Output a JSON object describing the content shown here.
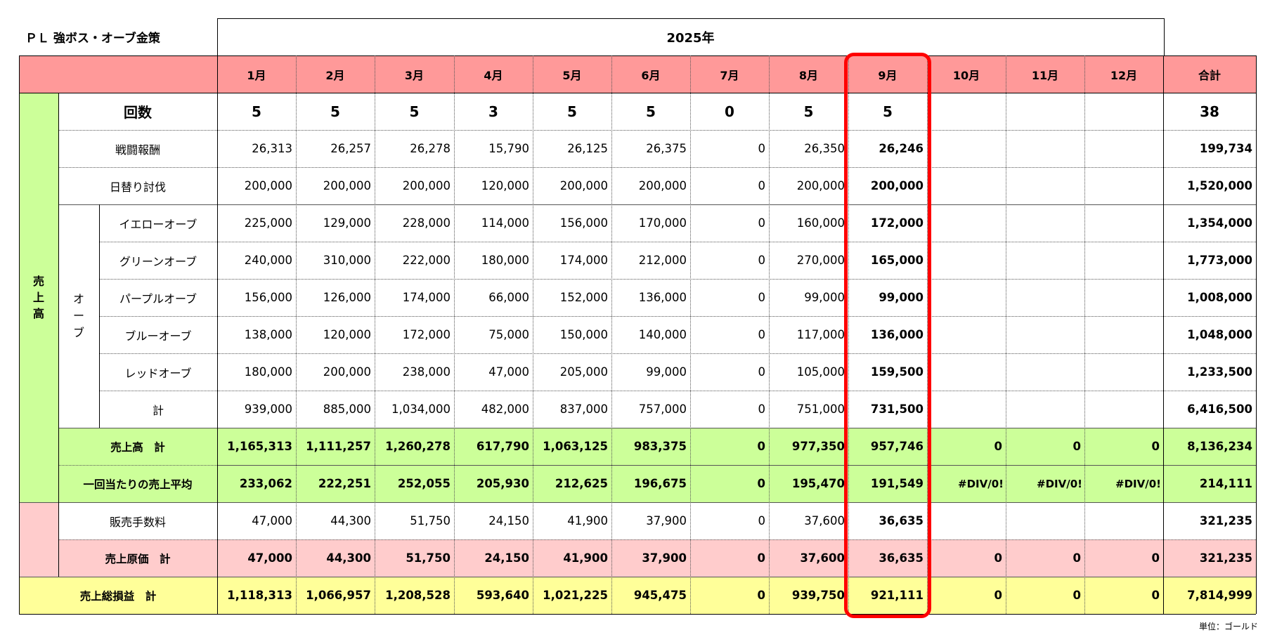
{
  "title": "ＰＬ 強ボス・オーブ金策",
  "year": "2025年",
  "months": [
    "1月",
    "2月",
    "3月",
    "4月",
    "5月",
    "6月",
    "7月",
    "8月",
    "9月",
    "10月",
    "11月",
    "12月"
  ],
  "total_header": "合計",
  "section_labels": {
    "sales": "売\n上\n高",
    "orb_group": "オ\nー\nブ"
  },
  "rows": [
    {
      "key": "count",
      "label": "回数",
      "values": [
        "5",
        "5",
        "5",
        "3",
        "5",
        "5",
        "0",
        "5",
        "5",
        "",
        "",
        ""
      ],
      "total": "38"
    },
    {
      "key": "battle",
      "label": "戦闘報酬",
      "values": [
        "26,313",
        "26,257",
        "26,278",
        "15,790",
        "26,125",
        "26,375",
        "0",
        "26,350",
        "26,246",
        "",
        "",
        ""
      ],
      "total": "199,734"
    },
    {
      "key": "daily",
      "label": "日替り討伐",
      "values": [
        "200,000",
        "200,000",
        "200,000",
        "120,000",
        "200,000",
        "200,000",
        "0",
        "200,000",
        "200,000",
        "",
        "",
        ""
      ],
      "total": "1,520,000"
    },
    {
      "key": "yellow",
      "label": "イエローオーブ",
      "values": [
        "225,000",
        "129,000",
        "228,000",
        "114,000",
        "156,000",
        "170,000",
        "0",
        "160,000",
        "172,000",
        "",
        "",
        ""
      ],
      "total": "1,354,000"
    },
    {
      "key": "green",
      "label": "グリーンオーブ",
      "values": [
        "240,000",
        "310,000",
        "222,000",
        "180,000",
        "174,000",
        "212,000",
        "0",
        "270,000",
        "165,000",
        "",
        "",
        ""
      ],
      "total": "1,773,000"
    },
    {
      "key": "purple",
      "label": "パープルオーブ",
      "values": [
        "156,000",
        "126,000",
        "174,000",
        "66,000",
        "152,000",
        "136,000",
        "0",
        "99,000",
        "99,000",
        "",
        "",
        ""
      ],
      "total": "1,008,000"
    },
    {
      "key": "blue",
      "label": "ブルーオーブ",
      "values": [
        "138,000",
        "120,000",
        "172,000",
        "75,000",
        "150,000",
        "140,000",
        "0",
        "117,000",
        "136,000",
        "",
        "",
        ""
      ],
      "total": "1,048,000"
    },
    {
      "key": "red",
      "label": "レッドオーブ",
      "values": [
        "180,000",
        "200,000",
        "238,000",
        "47,000",
        "205,000",
        "99,000",
        "0",
        "105,000",
        "159,500",
        "",
        "",
        ""
      ],
      "total": "1,233,500"
    },
    {
      "key": "orb_total",
      "label": "計",
      "values": [
        "939,000",
        "885,000",
        "1,034,000",
        "482,000",
        "837,000",
        "757,000",
        "0",
        "751,000",
        "731,500",
        "",
        "",
        ""
      ],
      "total": "6,416,500"
    },
    {
      "key": "sales_total",
      "label": "売上高　計",
      "values": [
        "1,165,313",
        "1,111,257",
        "1,260,278",
        "617,790",
        "1,063,125",
        "983,375",
        "0",
        "977,350",
        "957,746",
        "0",
        "0",
        "0"
      ],
      "total": "8,136,234"
    },
    {
      "key": "avg",
      "label": "一回当たりの売上平均",
      "values": [
        "233,062",
        "222,251",
        "252,055",
        "205,930",
        "212,625",
        "196,675",
        "0",
        "195,470",
        "191,549",
        "#DIV/0!",
        "#DIV/0!",
        "#DIV/0!"
      ],
      "total": "214,111"
    },
    {
      "key": "fee",
      "label": "販売手数料",
      "values": [
        "47,000",
        "44,300",
        "51,750",
        "24,150",
        "41,900",
        "37,900",
        "0",
        "37,600",
        "36,635",
        "",
        "",
        ""
      ],
      "total": "321,235"
    },
    {
      "key": "cogs",
      "label": "売上原価　計",
      "values": [
        "47,000",
        "44,300",
        "51,750",
        "24,150",
        "41,900",
        "37,900",
        "0",
        "37,600",
        "36,635",
        "0",
        "0",
        "0"
      ],
      "total": "321,235"
    },
    {
      "key": "gross",
      "label": "売上総損益　計",
      "values": [
        "1,118,313",
        "1,066,957",
        "1,208,528",
        "593,640",
        "1,021,225",
        "945,475",
        "0",
        "939,750",
        "921,111",
        "0",
        "0",
        "0"
      ],
      "total": "7,814,999"
    }
  ],
  "unit_note": "単位：ゴールド",
  "colors": {
    "header_pink": "#FF9999",
    "sales_green": "#CCFF99",
    "cost_pink": "#FFCCCC",
    "gross_yellow": "#FFFF99",
    "highlight_red": "#FF0000"
  }
}
